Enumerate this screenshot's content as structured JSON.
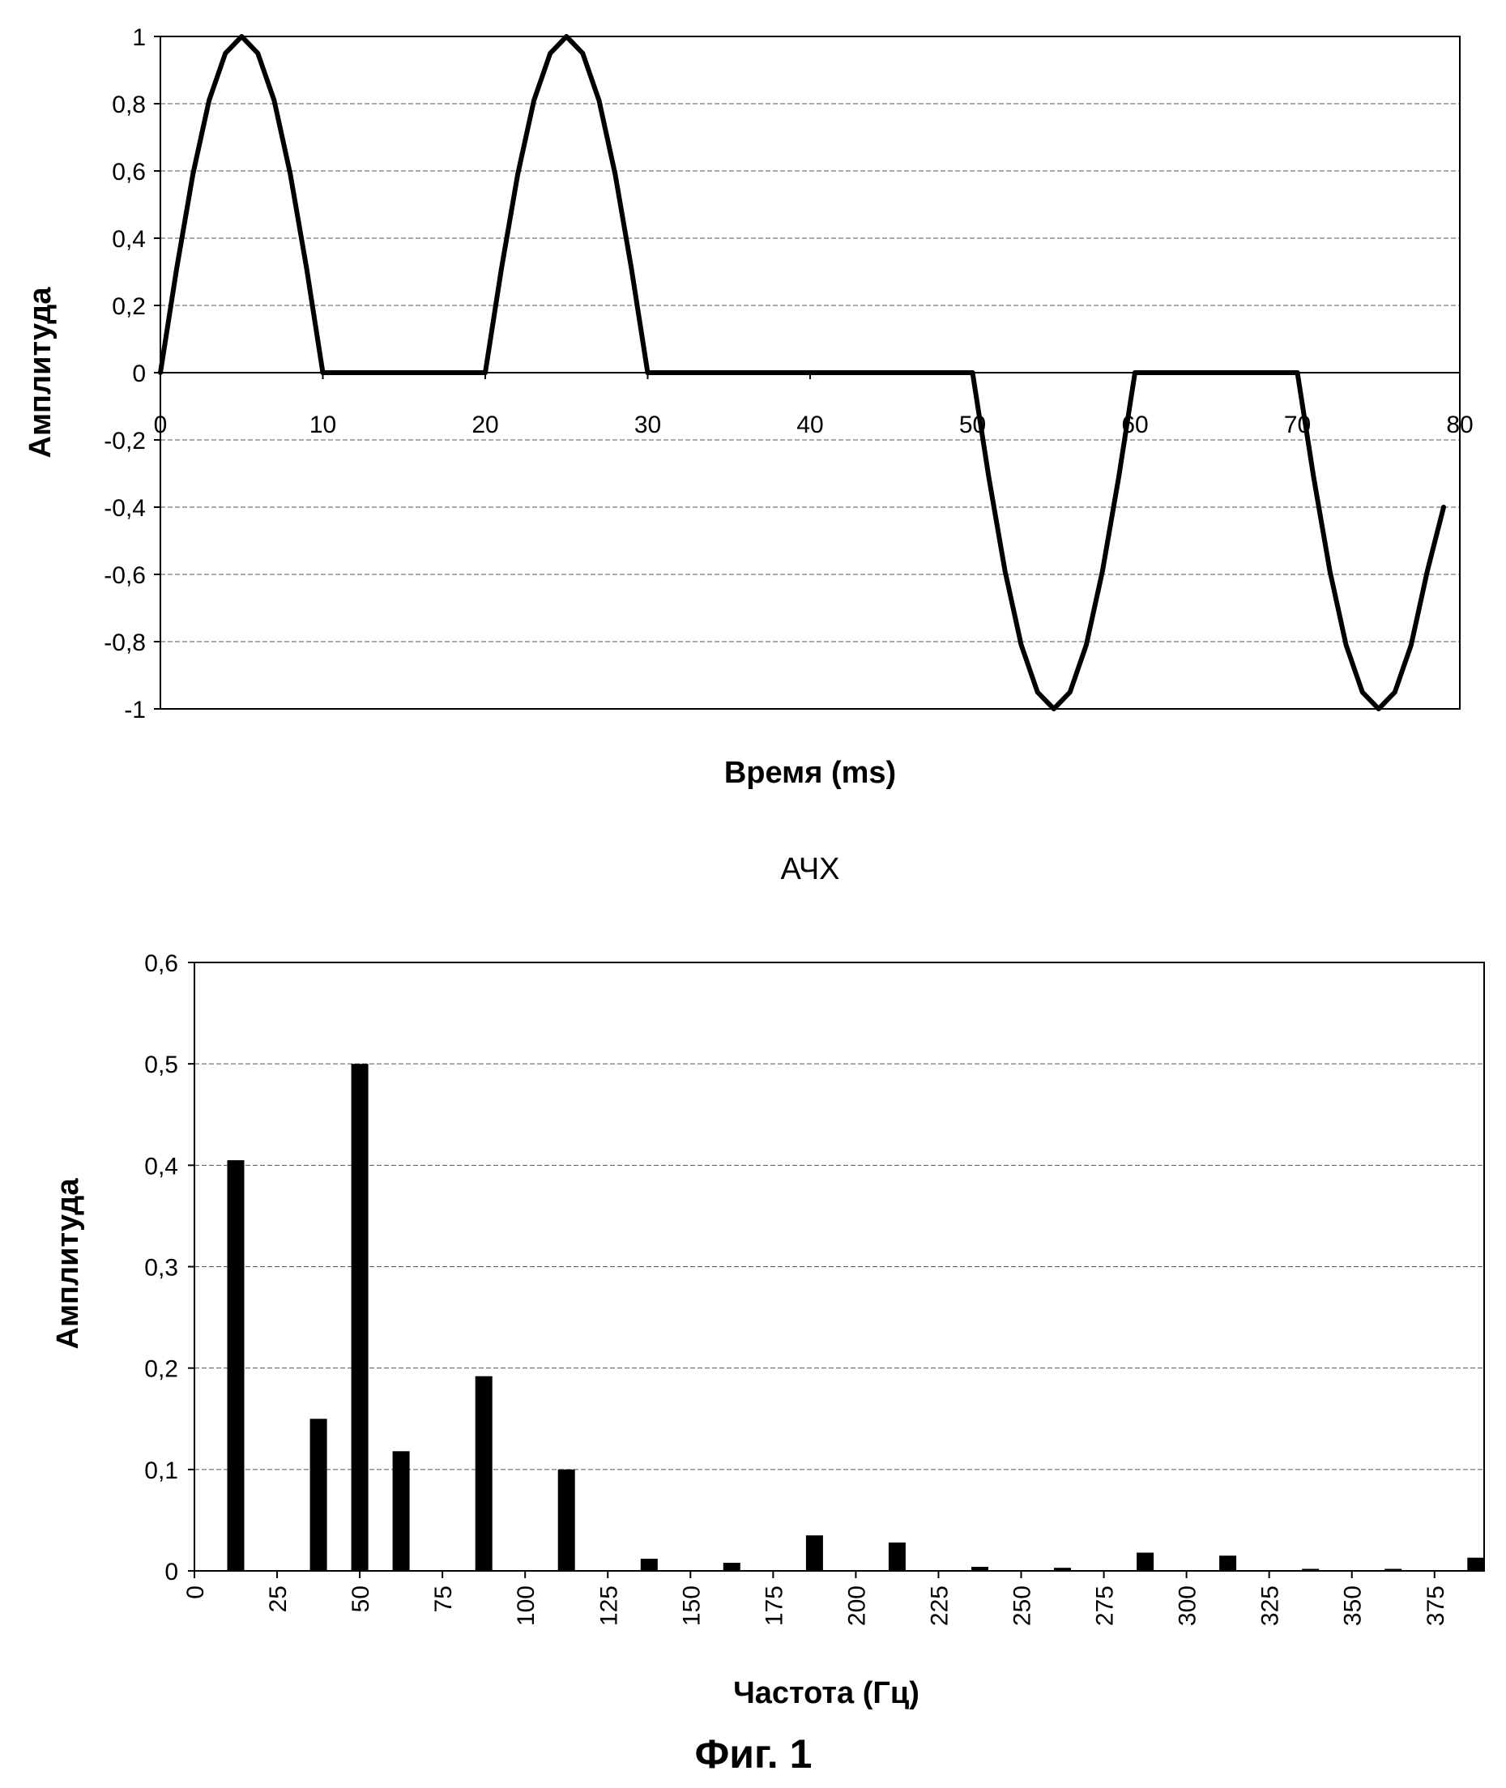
{
  "figure_caption": "Фиг. 1",
  "chart_data": [
    {
      "type": "line",
      "title": "",
      "xlabel": "Время (ms)",
      "ylabel": "Амплитуда",
      "xlim": [
        0,
        80
      ],
      "ylim": [
        -1,
        1
      ],
      "x_ticks": [
        "0",
        "10",
        "20",
        "30",
        "40",
        "50",
        "60",
        "70",
        "80"
      ],
      "y_ticks": [
        "1",
        "0,8",
        "0,6",
        "0,4",
        "0,2",
        "0",
        "-0,2",
        "-0,4",
        "-0,6",
        "-0,8",
        "-1"
      ],
      "grid": true,
      "legend": "none",
      "line_color": "#000000",
      "series": [
        {
          "x": [
            0,
            1,
            2,
            3,
            4,
            5,
            6,
            7,
            8,
            9,
            10,
            11,
            19,
            20,
            21,
            22,
            23,
            24,
            25,
            26,
            27,
            28,
            29,
            30,
            31,
            49,
            50,
            51,
            52,
            53,
            54,
            55,
            56,
            57,
            58,
            59,
            60,
            61,
            69,
            70,
            71,
            72,
            73,
            74,
            75,
            76,
            77,
            78,
            79
          ],
          "y": [
            0,
            0.31,
            0.59,
            0.81,
            0.95,
            1,
            0.95,
            0.81,
            0.59,
            0.31,
            0,
            0,
            0,
            0,
            0.31,
            0.59,
            0.81,
            0.95,
            1,
            0.95,
            0.81,
            0.59,
            0.31,
            0,
            0,
            0,
            0,
            -0.31,
            -0.59,
            -0.81,
            -0.95,
            -1,
            -0.95,
            -0.81,
            -0.59,
            -0.31,
            0,
            0,
            0,
            0,
            -0.31,
            -0.59,
            -0.81,
            -0.95,
            -1,
            -0.95,
            -0.81,
            -0.59,
            -0.4
          ]
        }
      ]
    },
    {
      "type": "bar",
      "title": "АЧХ",
      "xlabel": "Частота (Гц)",
      "ylabel": "Амплитуда",
      "xlim": [
        0,
        390
      ],
      "ylim": [
        0,
        0.6
      ],
      "x_ticks": [
        "0",
        "25",
        "50",
        "75",
        "100",
        "125",
        "150",
        "175",
        "200",
        "225",
        "250",
        "275",
        "300",
        "325",
        "350",
        "375"
      ],
      "y_ticks": [
        "0,6",
        "0,5",
        "0,4",
        "0,3",
        "0,2",
        "0,1",
        "0"
      ],
      "grid": true,
      "legend": "none",
      "bar_color": "#000000",
      "x": [
        12.5,
        37.5,
        50,
        62.5,
        87.5,
        112.5,
        137.5,
        162.5,
        187.5,
        212.5,
        237.5,
        262.5,
        287.5,
        312.5,
        337.5,
        362.5,
        387.5
      ],
      "values": [
        0.405,
        0.15,
        0.5,
        0.118,
        0.192,
        0.1,
        0.012,
        0.008,
        0.035,
        0.028,
        0.004,
        0.003,
        0.018,
        0.015,
        0.002,
        0.002,
        0.013
      ]
    }
  ]
}
